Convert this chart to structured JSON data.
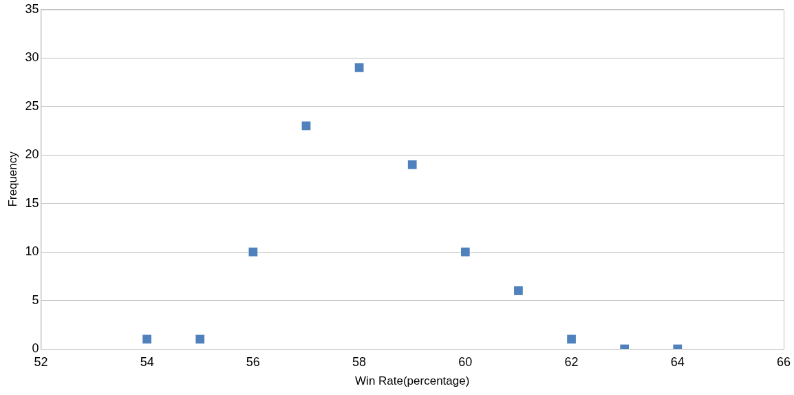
{
  "chart_data": {
    "type": "scatter",
    "xlabel": "Win Rate(percentage)",
    "ylabel": "Frequency",
    "x": [
      54,
      55,
      56,
      57,
      58,
      59,
      60,
      61,
      62,
      63,
      64
    ],
    "series": [
      {
        "color": "#4f81bd",
        "values": [
          1,
          1,
          10,
          23,
          29,
          19,
          10,
          6,
          1,
          0,
          0
        ]
      }
    ],
    "xlim": [
      52,
      66
    ],
    "xticks": [
      52,
      54,
      56,
      58,
      60,
      62,
      64,
      66
    ],
    "ylim": [
      0,
      35
    ],
    "yticks": [
      0,
      5,
      10,
      15,
      20,
      25,
      30,
      35
    ],
    "grid": "y",
    "marker": "square",
    "legend": false
  }
}
